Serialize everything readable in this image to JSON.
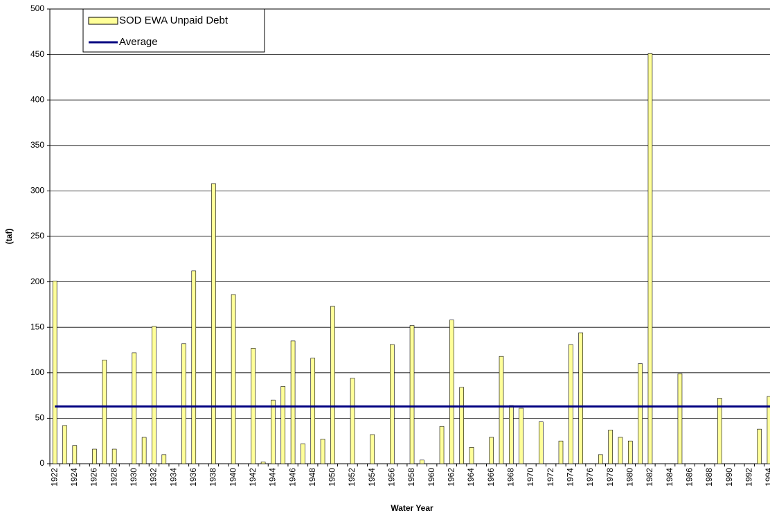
{
  "chart_data": {
    "type": "bar",
    "x_label": "Water Year",
    "y_label": "(taf)",
    "categories": [
      "1922",
      null,
      "1924",
      null,
      "1926",
      null,
      "1928",
      null,
      "1930",
      null,
      "1932",
      null,
      "1934",
      null,
      "1936",
      null,
      "1938",
      null,
      "1940",
      null,
      "1942",
      null,
      "1944",
      null,
      "1946",
      null,
      "1948",
      null,
      "1950",
      null,
      "1952",
      null,
      "1954",
      null,
      "1956",
      null,
      "1958",
      null,
      "1960",
      null,
      "1962",
      null,
      "1964",
      null,
      "1966",
      null,
      "1968",
      null,
      "1970",
      null,
      "1972",
      null,
      "1974",
      null,
      "1976",
      null,
      "1978",
      null,
      "1980",
      null,
      "1982",
      null,
      "1984",
      null,
      "1986",
      null,
      "1988",
      null,
      "1990",
      null,
      "1992",
      null,
      "1994"
    ],
    "series": [
      {
        "name": "SOD EWA Unpaid Debt",
        "color": "#ffff99",
        "values": [
          201,
          42,
          20,
          0,
          16,
          114,
          16,
          0,
          122,
          29,
          151,
          10,
          0,
          132,
          212,
          0,
          308,
          0,
          186,
          0,
          127,
          2,
          70,
          85,
          135,
          22,
          116,
          27,
          173,
          0,
          94,
          0,
          32,
          0,
          131,
          0,
          152,
          4,
          0,
          41,
          158,
          84,
          18,
          0,
          29,
          118,
          64,
          61,
          0,
          46,
          0,
          25,
          131,
          144,
          0,
          10,
          37,
          29,
          25,
          110,
          451,
          0,
          0,
          99,
          0,
          0,
          0,
          72,
          0,
          0,
          0,
          38,
          74
        ]
      }
    ],
    "average_line": {
      "name": "Average",
      "color": "#000080",
      "value": 63
    },
    "ylim": [
      0,
      500
    ],
    "yticks": [
      0,
      50,
      100,
      150,
      200,
      250,
      300,
      350,
      400,
      450,
      500
    ],
    "grid": true,
    "legend": "upper-left"
  }
}
